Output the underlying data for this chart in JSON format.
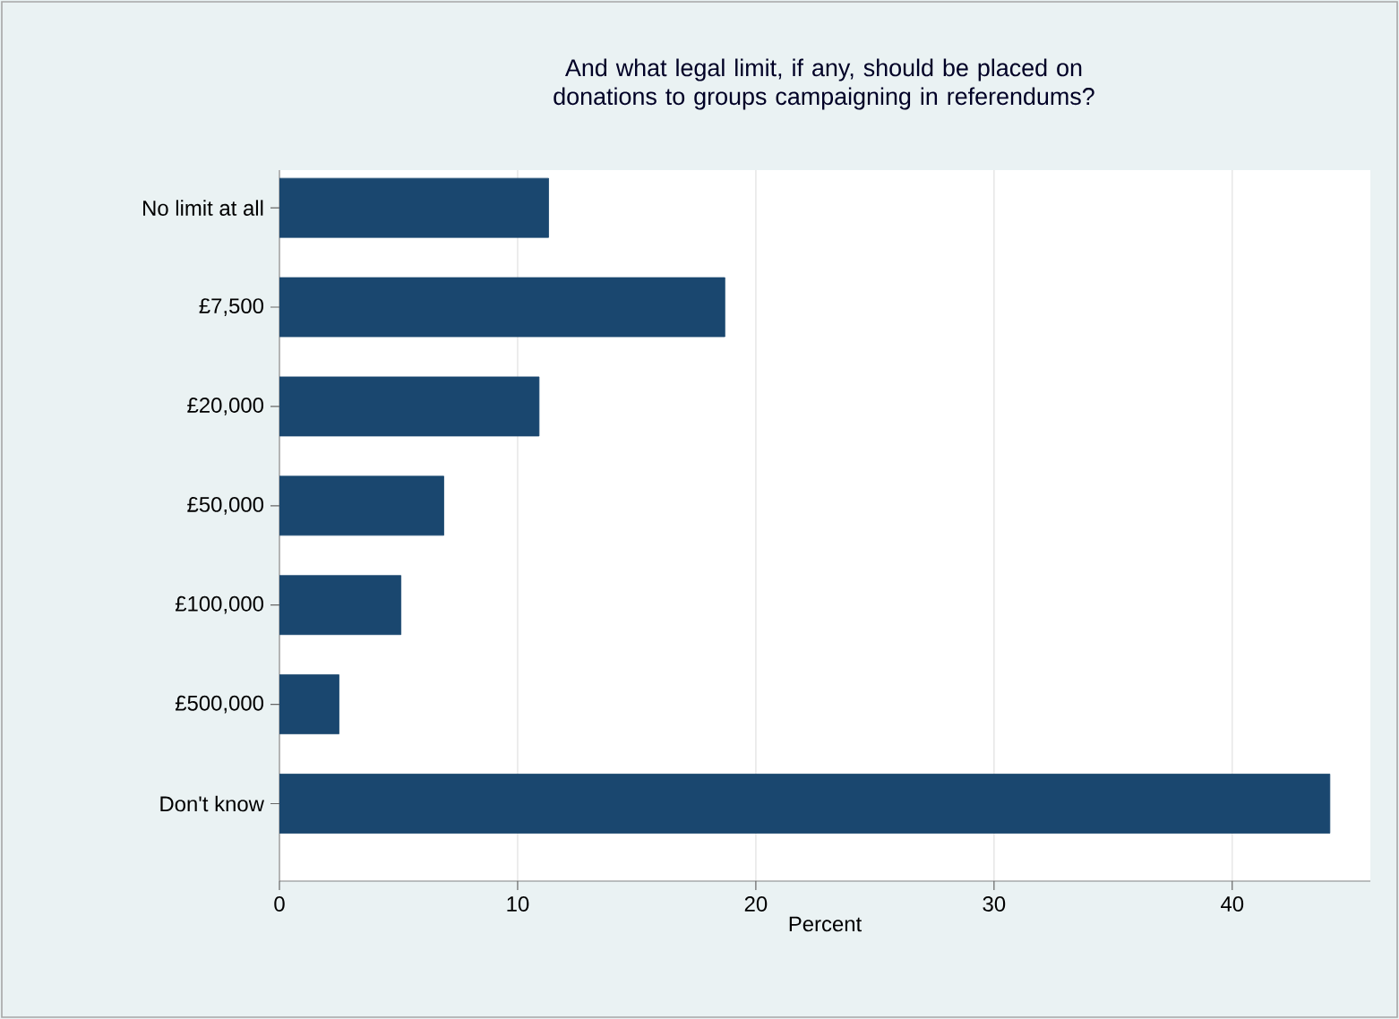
{
  "chart_data": {
    "type": "bar",
    "orientation": "horizontal",
    "title": "And what legal limit, if any, should be placed on donations to groups campaigning in referendums?",
    "xlabel": "Percent",
    "categories": [
      "No limit at all",
      "£7,500",
      "£20,000",
      "£50,000",
      "£100,000",
      "£500,000",
      "Don't know"
    ],
    "values": [
      11.3,
      18.7,
      10.9,
      6.9,
      5.1,
      2.5,
      44.1
    ],
    "color": "#1a476f",
    "xlim": [
      0,
      45.8
    ],
    "xticks": [
      0,
      10,
      20,
      30,
      40
    ],
    "grid": "x"
  }
}
